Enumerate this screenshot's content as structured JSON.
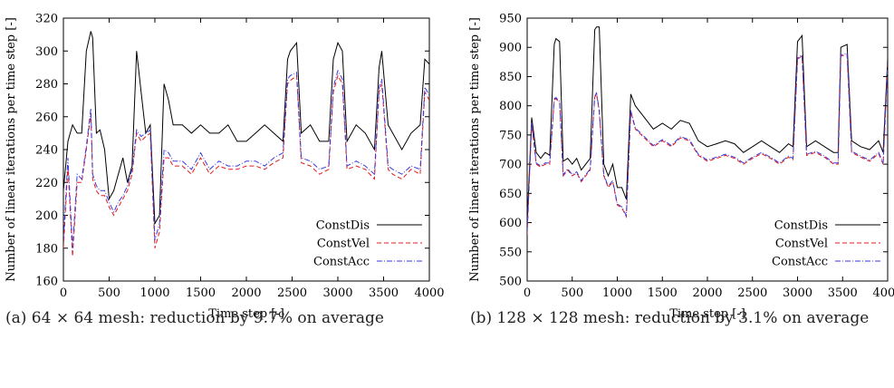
{
  "chart_data": [
    {
      "type": "line",
      "caption": "(a) 64 × 64 mesh: reduction by 9.7% on average",
      "xlabel": "Time step [-]",
      "ylabel": "Number of linear iterations per time step [-]",
      "xlim": [
        0,
        4000
      ],
      "ylim": [
        160,
        320
      ],
      "xticks": [
        0,
        500,
        1000,
        1500,
        2000,
        2500,
        3000,
        3500,
        4000
      ],
      "yticks": [
        160,
        180,
        200,
        220,
        240,
        260,
        280,
        300,
        320
      ],
      "legend": "bottom-right",
      "grid": false,
      "series": [
        {
          "name": "ConstDis",
          "color": "#000000",
          "dash": "solid",
          "x": [
            0,
            50,
            100,
            150,
            200,
            250,
            300,
            320,
            360,
            400,
            450,
            500,
            550,
            600,
            650,
            700,
            750,
            800,
            850,
            900,
            950,
            1000,
            1050,
            1100,
            1150,
            1200,
            1300,
            1400,
            1500,
            1600,
            1700,
            1800,
            1900,
            2000,
            2100,
            2200,
            2300,
            2400,
            2450,
            2480,
            2550,
            2600,
            2700,
            2800,
            2900,
            2950,
            3000,
            3050,
            3100,
            3200,
            3300,
            3400,
            3450,
            3480,
            3550,
            3600,
            3700,
            3800,
            3900,
            3950,
            4000
          ],
          "y": [
            215,
            245,
            255,
            250,
            250,
            300,
            312,
            308,
            250,
            252,
            240,
            210,
            215,
            225,
            235,
            220,
            230,
            300,
            275,
            250,
            255,
            195,
            200,
            280,
            270,
            255,
            255,
            250,
            255,
            250,
            250,
            255,
            245,
            245,
            250,
            255,
            250,
            245,
            295,
            300,
            305,
            250,
            255,
            245,
            245,
            295,
            305,
            300,
            245,
            255,
            250,
            240,
            290,
            300,
            255,
            250,
            240,
            250,
            255,
            295,
            292
          ]
        },
        {
          "name": "ConstVel",
          "color": "#e41a1c",
          "dash": "5 3",
          "x": [
            0,
            50,
            100,
            150,
            200,
            250,
            300,
            320,
            360,
            400,
            450,
            500,
            550,
            600,
            650,
            700,
            750,
            800,
            850,
            900,
            950,
            1000,
            1050,
            1100,
            1150,
            1200,
            1300,
            1400,
            1500,
            1600,
            1700,
            1800,
            1900,
            2000,
            2100,
            2200,
            2300,
            2400,
            2450,
            2480,
            2550,
            2600,
            2700,
            2800,
            2900,
            2950,
            3000,
            3050,
            3100,
            3200,
            3300,
            3400,
            3450,
            3480,
            3550,
            3600,
            3700,
            3800,
            3900,
            3950,
            4000
          ],
          "y": [
            180,
            230,
            175,
            220,
            220,
            240,
            262,
            222,
            215,
            212,
            212,
            205,
            200,
            205,
            210,
            215,
            225,
            250,
            245,
            248,
            250,
            180,
            190,
            235,
            235,
            230,
            230,
            225,
            235,
            225,
            230,
            228,
            228,
            230,
            230,
            228,
            232,
            235,
            280,
            282,
            285,
            232,
            230,
            225,
            228,
            275,
            285,
            280,
            228,
            230,
            228,
            222,
            275,
            280,
            228,
            225,
            222,
            228,
            225,
            275,
            270
          ]
        },
        {
          "name": "ConstAcc",
          "color": "#3a3adf",
          "dash": "6 2 1 2",
          "x": [
            0,
            50,
            100,
            150,
            200,
            250,
            300,
            320,
            360,
            400,
            450,
            500,
            550,
            600,
            650,
            700,
            750,
            800,
            850,
            900,
            950,
            1000,
            1050,
            1100,
            1150,
            1200,
            1300,
            1400,
            1500,
            1600,
            1700,
            1800,
            1900,
            2000,
            2100,
            2200,
            2300,
            2400,
            2450,
            2480,
            2550,
            2600,
            2700,
            2800,
            2900,
            2950,
            3000,
            3050,
            3100,
            3200,
            3300,
            3400,
            3450,
            3480,
            3550,
            3600,
            3700,
            3800,
            3900,
            3950,
            4000
          ],
          "y": [
            185,
            235,
            180,
            225,
            222,
            242,
            265,
            225,
            218,
            215,
            215,
            208,
            202,
            208,
            212,
            218,
            228,
            252,
            248,
            250,
            252,
            185,
            195,
            240,
            238,
            233,
            233,
            228,
            238,
            228,
            233,
            230,
            230,
            233,
            233,
            230,
            235,
            238,
            283,
            285,
            287,
            235,
            233,
            228,
            230,
            278,
            288,
            283,
            230,
            233,
            230,
            225,
            278,
            283,
            230,
            228,
            225,
            230,
            228,
            278,
            273
          ]
        }
      ]
    },
    {
      "type": "line",
      "caption": "(b) 128 × 128 mesh: reduction by 3.1% on average",
      "xlabel": "Time step [-]",
      "ylabel": "Number of linear iterations per time step [-]",
      "xlim": [
        0,
        4000
      ],
      "ylim": [
        500,
        950
      ],
      "xticks": [
        0,
        500,
        1000,
        1500,
        2000,
        2500,
        3000,
        3500,
        4000
      ],
      "yticks": [
        500,
        550,
        600,
        650,
        700,
        750,
        800,
        850,
        900,
        950
      ],
      "legend": "bottom-right",
      "grid": false,
      "series": [
        {
          "name": "ConstDis",
          "color": "#000000",
          "dash": "solid",
          "x": [
            0,
            50,
            100,
            150,
            200,
            250,
            300,
            320,
            360,
            400,
            450,
            500,
            550,
            600,
            650,
            700,
            750,
            770,
            800,
            850,
            900,
            950,
            1000,
            1050,
            1100,
            1150,
            1200,
            1300,
            1400,
            1500,
            1600,
            1700,
            1800,
            1900,
            2000,
            2100,
            2200,
            2300,
            2400,
            2500,
            2600,
            2700,
            2800,
            2900,
            2950,
            3000,
            3050,
            3100,
            3200,
            3300,
            3400,
            3450,
            3480,
            3550,
            3600,
            3700,
            3800,
            3900,
            3950,
            4000
          ],
          "y": [
            600,
            780,
            720,
            710,
            720,
            715,
            905,
            915,
            910,
            705,
            710,
            700,
            710,
            690,
            700,
            710,
            930,
            935,
            935,
            700,
            680,
            700,
            660,
            660,
            640,
            820,
            800,
            780,
            760,
            770,
            760,
            775,
            770,
            740,
            730,
            735,
            740,
            735,
            720,
            730,
            740,
            730,
            720,
            735,
            730,
            910,
            920,
            730,
            740,
            730,
            720,
            720,
            900,
            905,
            740,
            730,
            725,
            740,
            720,
            880
          ]
        },
        {
          "name": "ConstVel",
          "color": "#e41a1c",
          "dash": "5 3",
          "x": [
            0,
            50,
            100,
            150,
            200,
            250,
            300,
            320,
            360,
            400,
            450,
            500,
            550,
            600,
            650,
            700,
            750,
            770,
            800,
            850,
            900,
            950,
            1000,
            1050,
            1100,
            1150,
            1200,
            1300,
            1400,
            1500,
            1600,
            1700,
            1800,
            1900,
            2000,
            2100,
            2200,
            2300,
            2400,
            2500,
            2600,
            2700,
            2800,
            2900,
            2950,
            3000,
            3050,
            3100,
            3200,
            3300,
            3400,
            3450,
            3480,
            3550,
            3600,
            3700,
            3800,
            3900,
            3950,
            4000
          ],
          "y": [
            580,
            770,
            700,
            695,
            700,
            700,
            810,
            812,
            805,
            680,
            690,
            680,
            685,
            670,
            680,
            690,
            815,
            820,
            790,
            680,
            660,
            670,
            630,
            625,
            610,
            790,
            760,
            745,
            730,
            740,
            730,
            745,
            740,
            715,
            705,
            710,
            715,
            710,
            700,
            710,
            718,
            710,
            700,
            712,
            708,
            880,
            885,
            715,
            720,
            712,
            700,
            700,
            885,
            888,
            720,
            712,
            705,
            718,
            700,
            870
          ]
        },
        {
          "name": "ConstAcc",
          "color": "#3a3adf",
          "dash": "6 2 1 2",
          "x": [
            0,
            50,
            100,
            150,
            200,
            250,
            300,
            320,
            360,
            400,
            450,
            500,
            550,
            600,
            650,
            700,
            750,
            770,
            800,
            850,
            900,
            950,
            1000,
            1050,
            1100,
            1150,
            1200,
            1300,
            1400,
            1500,
            1600,
            1700,
            1800,
            1900,
            2000,
            2100,
            2200,
            2300,
            2400,
            2500,
            2600,
            2700,
            2800,
            2900,
            2950,
            3000,
            3050,
            3100,
            3200,
            3300,
            3400,
            3450,
            3480,
            3550,
            3600,
            3700,
            3800,
            3900,
            3950,
            4000
          ],
          "y": [
            585,
            772,
            702,
            697,
            702,
            702,
            812,
            814,
            807,
            682,
            692,
            682,
            687,
            672,
            682,
            692,
            817,
            822,
            792,
            682,
            662,
            672,
            632,
            627,
            612,
            792,
            762,
            747,
            732,
            742,
            732,
            747,
            742,
            717,
            707,
            712,
            717,
            712,
            702,
            712,
            720,
            712,
            702,
            714,
            710,
            882,
            887,
            717,
            722,
            714,
            702,
            702,
            887,
            890,
            722,
            714,
            707,
            720,
            702,
            872
          ]
        }
      ]
    }
  ]
}
